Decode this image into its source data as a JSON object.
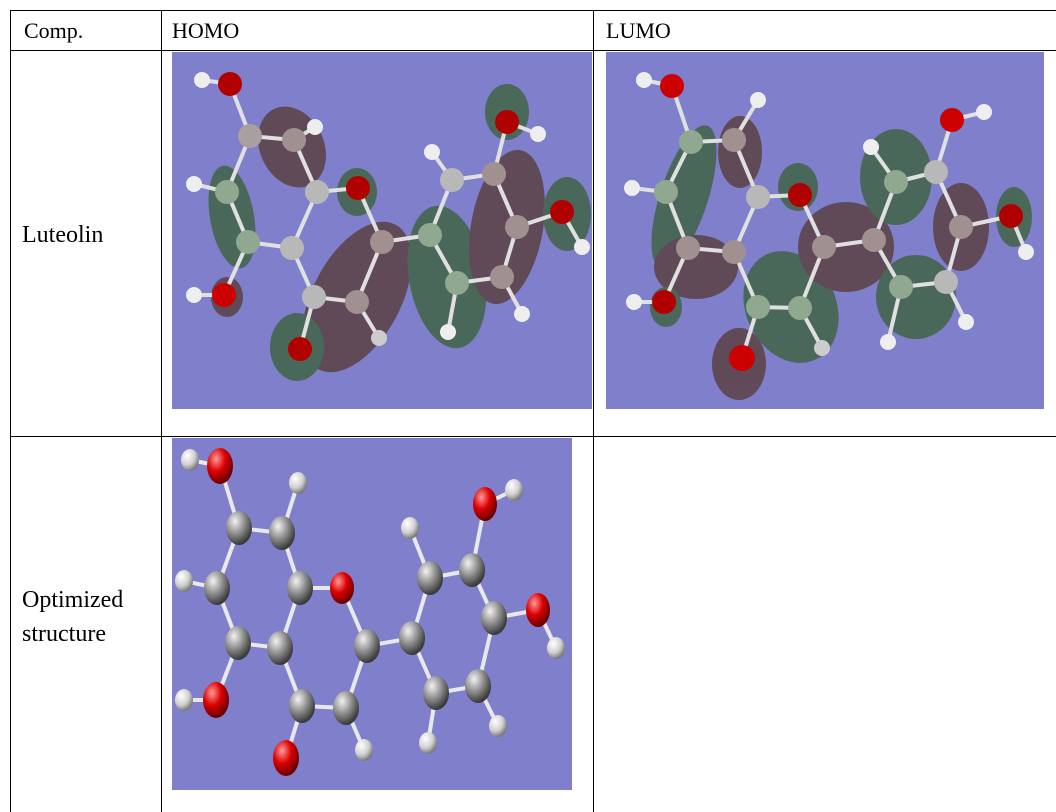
{
  "table": {
    "headers": [
      "Comp.",
      "HOMO",
      "LUMO"
    ],
    "rows": [
      {
        "label": "Luteolin"
      },
      {
        "label_line1": "Optimized",
        "label_line2": "structure"
      }
    ]
  },
  "colors": {
    "panel_background": "#7f7fcc",
    "oxygen": "#d10000",
    "carbon": "#8a8a8a",
    "hydrogen": "#e8e8e8",
    "positive_lobe": "#3e6440",
    "negative_lobe": "#5a3f3f"
  }
}
